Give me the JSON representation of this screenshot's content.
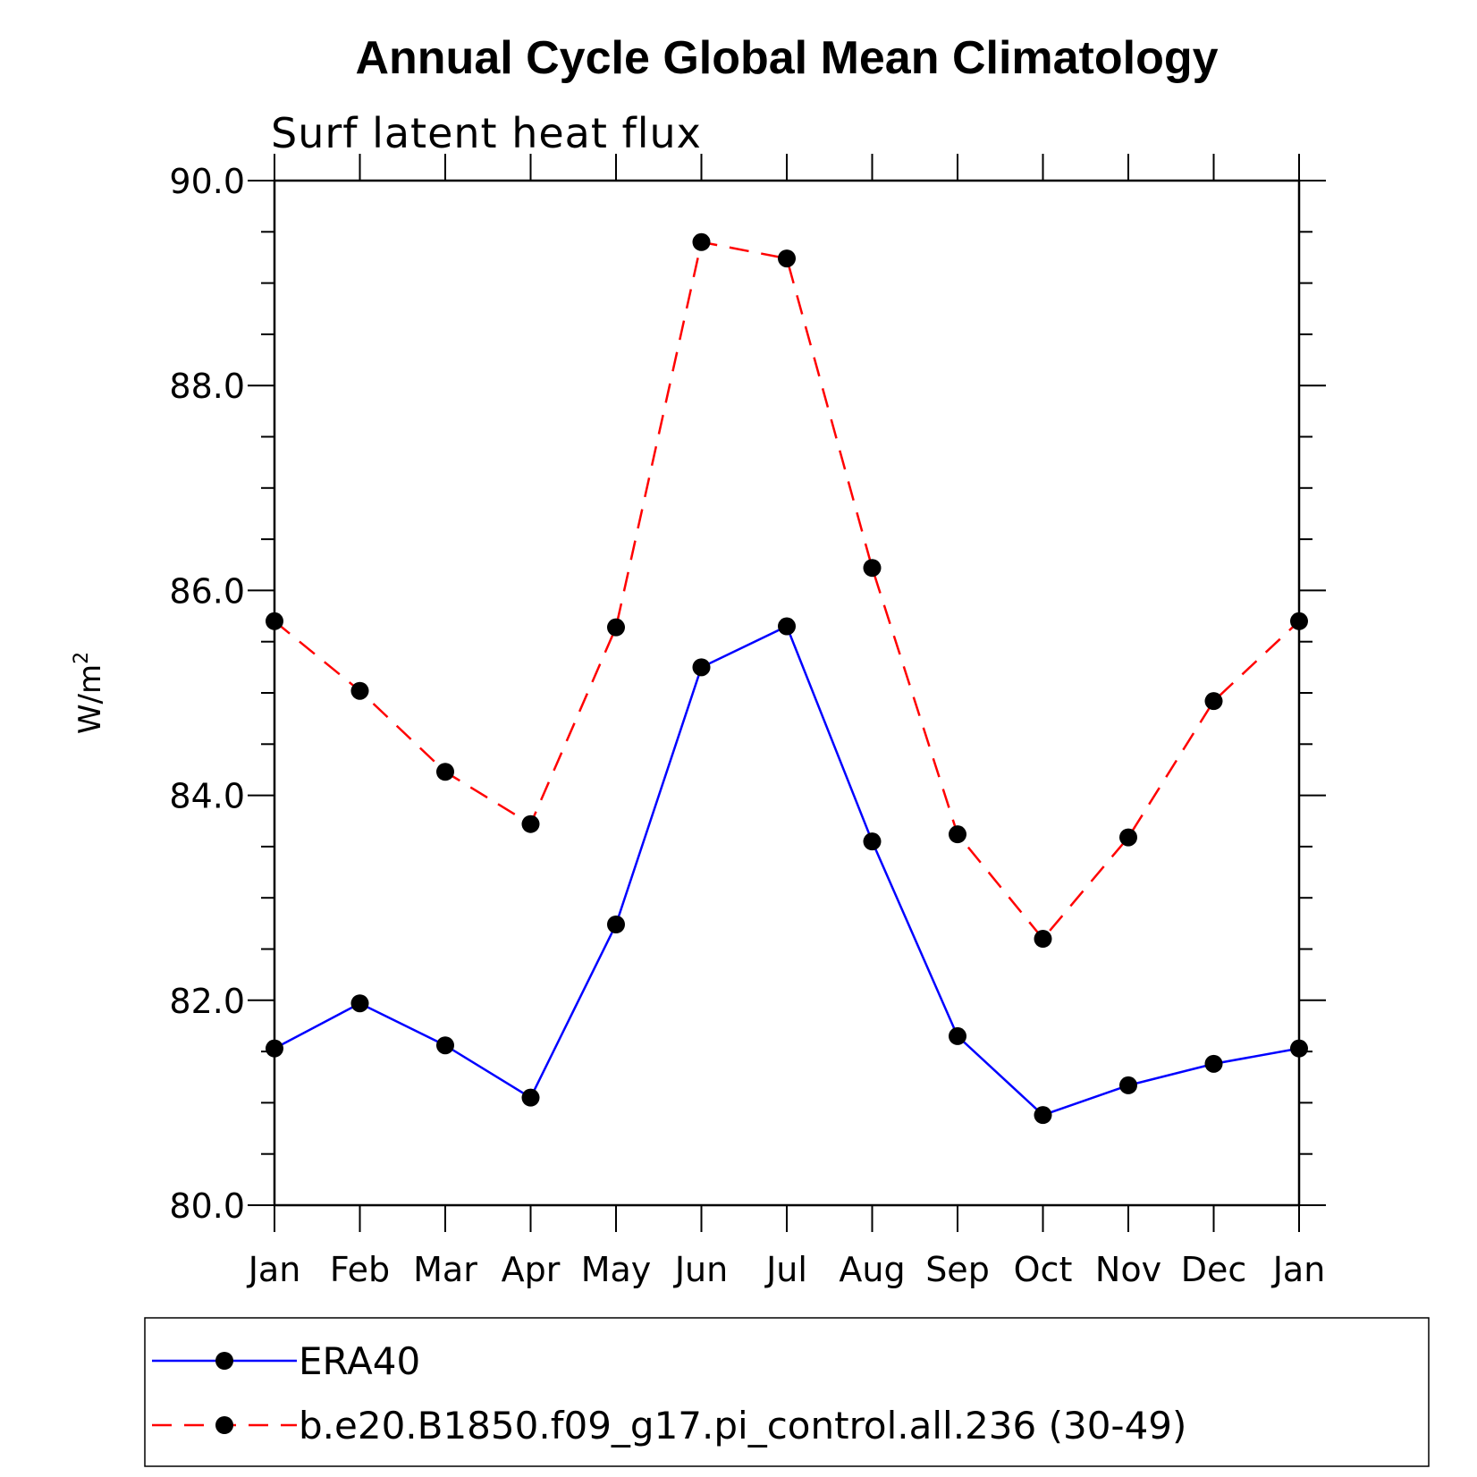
{
  "chart_data": {
    "type": "line",
    "title": "Annual Cycle Global Mean Climatology",
    "subtitle": "Surf latent heat flux",
    "ylabel": "W/m",
    "ylabel_superscript": "2",
    "ylim": [
      80.0,
      90.0
    ],
    "yticks": [
      "80.0",
      "82.0",
      "84.0",
      "86.0",
      "88.0",
      "90.0"
    ],
    "categories": [
      "Jan",
      "Feb",
      "Mar",
      "Apr",
      "May",
      "Jun",
      "Jul",
      "Aug",
      "Sep",
      "Oct",
      "Nov",
      "Dec",
      "Jan"
    ],
    "grid": false,
    "legend_placement": "bottom",
    "series": [
      {
        "name": "ERA40",
        "color": "#0000ff",
        "dash": "solid",
        "values": [
          81.53,
          81.97,
          81.56,
          81.05,
          82.74,
          85.25,
          85.65,
          83.55,
          81.65,
          80.88,
          81.17,
          81.38,
          81.53
        ]
      },
      {
        "name": "b.e20.B1850.f09_g17.pi_control.all.236 (30-49)",
        "color": "#ff0000",
        "dash": "dashed",
        "values": [
          85.7,
          85.02,
          84.23,
          83.72,
          85.64,
          89.4,
          89.24,
          86.22,
          83.62,
          82.6,
          83.59,
          84.92,
          85.7
        ]
      }
    ]
  }
}
